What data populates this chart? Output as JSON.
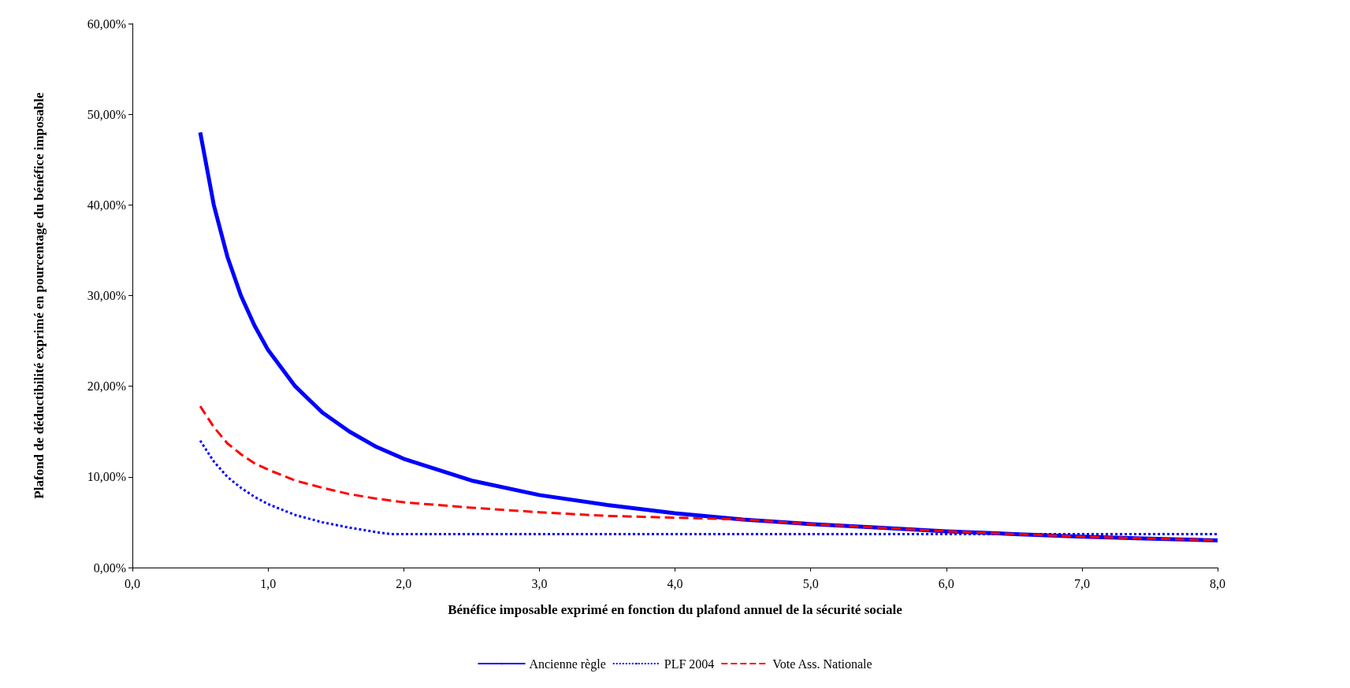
{
  "chart_data": {
    "type": "line",
    "xlabel": "Bénéfice imposable exprimé en fonction du plafond annuel de la sécurité sociale",
    "ylabel": "Plafond de déductibilité exprimé en pourcentage du bénéfice imposable",
    "xlim": [
      0,
      8
    ],
    "xticks": [
      {
        "value": 0,
        "label": "0,0"
      },
      {
        "value": 1,
        "label": "1,0"
      },
      {
        "value": 2,
        "label": "2,0"
      },
      {
        "value": 3,
        "label": "3,0"
      },
      {
        "value": 4,
        "label": "4,0"
      },
      {
        "value": 5,
        "label": "5,0"
      },
      {
        "value": 6,
        "label": "6,0"
      },
      {
        "value": 7,
        "label": "7,0"
      },
      {
        "value": 8,
        "label": "8,0"
      }
    ],
    "ylim": [
      0,
      60
    ],
    "yticks": [
      {
        "value": 0,
        "label": "0,00%"
      },
      {
        "value": 10,
        "label": "10,00%"
      },
      {
        "value": 20,
        "label": "20,00%"
      },
      {
        "value": 30,
        "label": "30,00%"
      },
      {
        "value": 40,
        "label": "40,00%"
      },
      {
        "value": 50,
        "label": "50,00%"
      },
      {
        "value": 60,
        "label": "60,00%"
      }
    ],
    "grid": false,
    "legend": "bottom",
    "marker": "none",
    "series": [
      {
        "name": "Ancienne règle",
        "color": "#0000ff",
        "line_style": "solid",
        "x": [
          0.5,
          0.6,
          0.7,
          0.8,
          0.9,
          1.0,
          1.2,
          1.4,
          1.6,
          1.8,
          2.0,
          2.5,
          3.0,
          3.5,
          4.0,
          4.5,
          5.0,
          5.5,
          6.0,
          6.5,
          7.0,
          7.5,
          8.0
        ],
        "values": [
          48,
          40,
          34.3,
          30,
          26.7,
          24,
          20,
          17.1,
          15,
          13.3,
          12,
          9.6,
          8,
          6.9,
          6,
          5.3,
          4.8,
          4.4,
          4,
          3.7,
          3.4,
          3.2,
          3
        ]
      },
      {
        "name": "PLF 2004",
        "color": "#0000ff",
        "line_style": "dotted",
        "x": [
          0.5,
          0.6,
          0.7,
          0.8,
          0.9,
          1.0,
          1.2,
          1.4,
          1.6,
          1.8,
          1.9,
          3.0,
          4.0,
          5.0,
          6.0,
          7.0,
          8.0
        ],
        "values": [
          14,
          11.7,
          10,
          8.8,
          7.8,
          7,
          5.8,
          5,
          4.4,
          3.9,
          3.7,
          3.7,
          3.7,
          3.7,
          3.7,
          3.7,
          3.7
        ]
      },
      {
        "name": "Vote Ass. Nationale",
        "color": "#ff0000",
        "line_style": "dashed",
        "x": [
          0.5,
          0.6,
          0.7,
          0.8,
          0.9,
          1.0,
          1.2,
          1.4,
          1.6,
          1.8,
          2.0,
          2.5,
          3.0,
          3.5,
          4.0,
          4.5,
          5.0,
          5.5,
          6.0,
          6.5,
          7.0,
          7.5,
          8.0
        ],
        "values": [
          17.8,
          15.5,
          13.7,
          12.5,
          11.5,
          10.8,
          9.6,
          8.8,
          8.1,
          7.6,
          7.2,
          6.6,
          6.1,
          5.7,
          5.5,
          5.3,
          4.8,
          4.4,
          4,
          3.7,
          3.4,
          3.2,
          3
        ]
      }
    ]
  }
}
